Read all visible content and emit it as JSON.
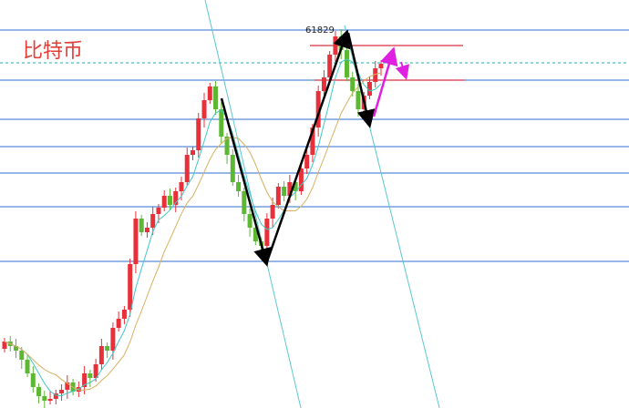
{
  "title": "比特币",
  "annotation": "61829"
}
